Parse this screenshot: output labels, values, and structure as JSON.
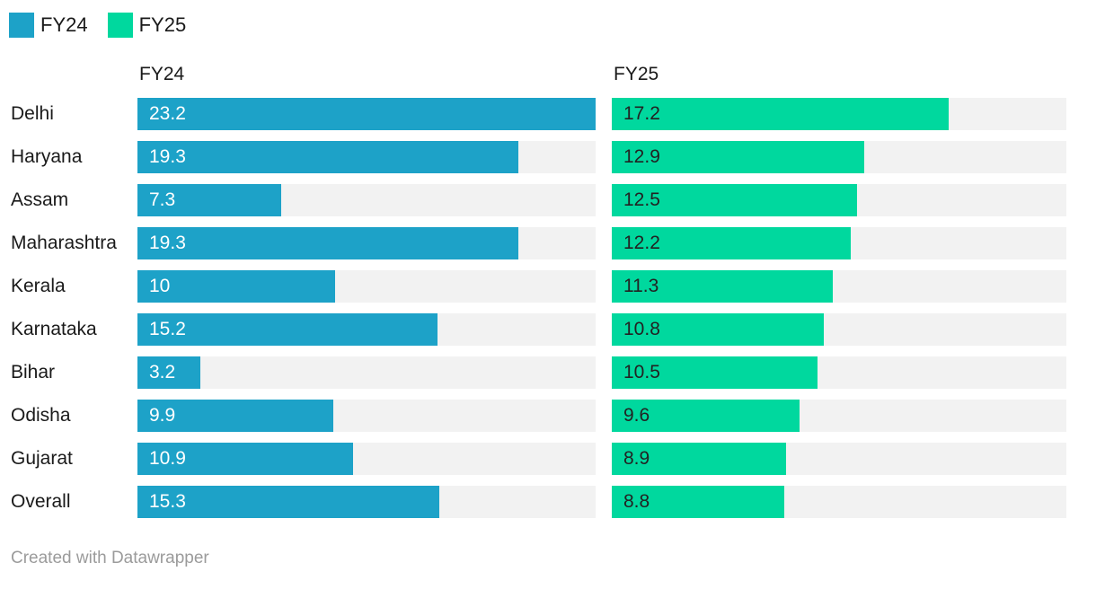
{
  "legend": {
    "items": [
      {
        "label": "FY24",
        "color": "#1da2c8"
      },
      {
        "label": "FY25",
        "color": "#00d89e"
      }
    ]
  },
  "chart_data": {
    "type": "bar",
    "layout": "two-column horizontal bars, shared scale",
    "column_headers": [
      "FY24",
      "FY25"
    ],
    "categories": [
      "Delhi",
      "Haryana",
      "Assam",
      "Maharashtra",
      "Kerala",
      "Karnataka",
      "Bihar",
      "Odisha",
      "Gujarat",
      "Overall"
    ],
    "series": [
      {
        "name": "FY24",
        "color": "#1da2c8",
        "values": [
          23.2,
          19.3,
          7.3,
          19.3,
          10,
          15.2,
          3.2,
          9.9,
          10.9,
          15.3
        ],
        "labels": [
          "23.2",
          "19.3",
          "7.3",
          "19.3",
          "10",
          "15.2",
          "3.2",
          "9.9",
          "10.9",
          "15.3"
        ],
        "value_label_color": "#ffffff"
      },
      {
        "name": "FY25",
        "color": "#00d89e",
        "values": [
          17.2,
          12.9,
          12.5,
          12.2,
          11.3,
          10.8,
          10.5,
          9.6,
          8.9,
          8.8
        ],
        "labels": [
          "17.2",
          "12.9",
          "12.5",
          "12.2",
          "11.3",
          "10.8",
          "10.5",
          "9.6",
          "8.9",
          "8.8"
        ],
        "value_label_color": "#222222"
      }
    ],
    "xmax": 23.2,
    "xlim": [
      0,
      23.2
    ],
    "track_color": "#f2f2f2",
    "grid": false,
    "legend_position": "top-left",
    "title": "",
    "xlabel": "",
    "ylabel": ""
  },
  "footer": {
    "credit": "Created with Datawrapper"
  }
}
